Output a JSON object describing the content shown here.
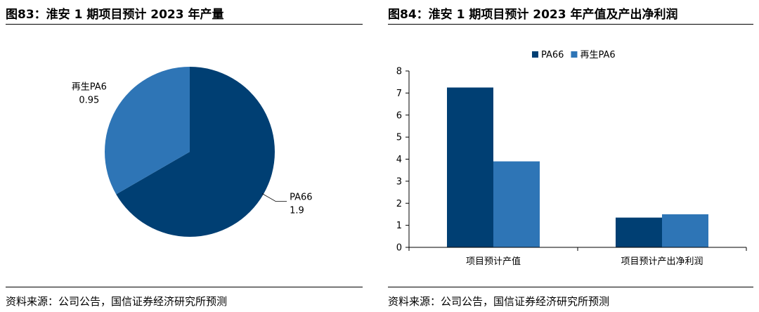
{
  "left": {
    "title": "图83：淮安 1 期项目预计 2023 年产量",
    "source": "资料来源：公司公告，国信证券经济研究所预测"
  },
  "right": {
    "title": "图84：淮安 1 期项目预计 2023 年产值及产出净利润",
    "source": "资料来源：公司公告，国信证券经济研究所预测"
  },
  "chart_data": [
    {
      "type": "pie",
      "title": "图83：淮安 1 期项目预计 2023 年产量",
      "slices": [
        {
          "name": "PA66",
          "value": 1.9,
          "value_label": "1.9",
          "color": "#003f73"
        },
        {
          "name": "再生PA6",
          "value": 0.95,
          "value_label": "0.95",
          "color": "#2e75b6"
        }
      ]
    },
    {
      "type": "bar",
      "title": "图84：淮安 1 期项目预计 2023 年产值及产出净利润",
      "categories": [
        "项目预计产值",
        "项目预计产出净利润"
      ],
      "series": [
        {
          "name": "PA66",
          "values": [
            7.25,
            1.35
          ],
          "color": "#003f73"
        },
        {
          "name": "再生PA6",
          "values": [
            3.9,
            1.5
          ],
          "color": "#2e75b6"
        }
      ],
      "ylim": [
        0,
        8
      ],
      "yticks": [
        0,
        1,
        2,
        3,
        4,
        5,
        6,
        7,
        8
      ],
      "legend": "top",
      "grid": false
    }
  ]
}
